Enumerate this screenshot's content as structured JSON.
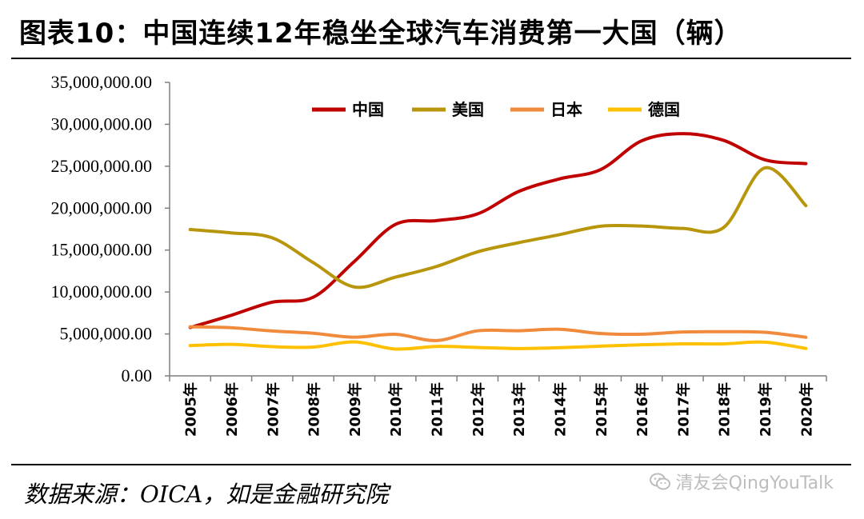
{
  "title": "图表10：中国连续12年稳坐全球汽车消费第一大国（辆）",
  "source": "数据来源：OICA，如是金融研究院",
  "watermark": "清友会QingYouTalk",
  "chart_data": {
    "type": "line",
    "x": [
      "2005年",
      "2006年",
      "2007年",
      "2008年",
      "2009年",
      "2010年",
      "2011年",
      "2012年",
      "2013年",
      "2014年",
      "2015年",
      "2016年",
      "2017年",
      "2018年",
      "2019年",
      "2020年"
    ],
    "y_tick_labels": [
      "0.00",
      "5,000,000.00",
      "10,000,000.00",
      "15,000,000.00",
      "20,000,000.00",
      "25,000,000.00",
      "30,000,000.00",
      "35,000,000.00"
    ],
    "ylim": [
      0,
      35000000
    ],
    "grid": false,
    "legend_position": "top",
    "series": [
      {
        "name": "中国",
        "color": "#c00000",
        "values": [
          5760000,
          7220000,
          8790000,
          9380000,
          13640000,
          18060000,
          18510000,
          19310000,
          21980000,
          23490000,
          24600000,
          28030000,
          28880000,
          28080000,
          25770000,
          25310000
        ]
      },
      {
        "name": "美国",
        "color": "#b8960c",
        "values": [
          17450000,
          17050000,
          16460000,
          13500000,
          10600000,
          11770000,
          13040000,
          14790000,
          15880000,
          16840000,
          17850000,
          17870000,
          17580000,
          17700000,
          24800000,
          20300000
        ]
      },
      {
        "name": "日本",
        "color": "#f08a3c",
        "values": [
          5850000,
          5740000,
          5350000,
          5080000,
          4610000,
          4960000,
          4210000,
          5370000,
          5380000,
          5560000,
          5050000,
          4970000,
          5230000,
          5270000,
          5200000,
          4600000
        ]
      },
      {
        "name": "德国",
        "color": "#ffc000",
        "values": [
          3610000,
          3750000,
          3480000,
          3430000,
          4050000,
          3200000,
          3510000,
          3390000,
          3260000,
          3360000,
          3540000,
          3710000,
          3810000,
          3820000,
          4020000,
          3270000
        ]
      }
    ]
  }
}
